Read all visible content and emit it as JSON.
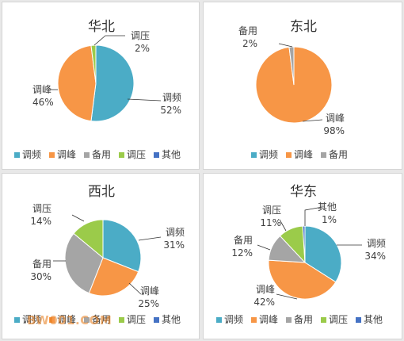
{
  "colors": {
    "调频": "#4bacc6",
    "调峰": "#f79646",
    "备用": "#a5a5a5",
    "调压": "#9bcb4a",
    "其他": "#4572c4"
  },
  "chart_data": [
    {
      "type": "pie",
      "title": "华北",
      "slices": [
        {
          "name": "调频",
          "value": 52,
          "label": "52%"
        },
        {
          "name": "调峰",
          "value": 46,
          "label": "46%"
        },
        {
          "name": "调压",
          "value": 2,
          "label": "2%"
        }
      ],
      "legend": [
        "调频",
        "调峰",
        "备用",
        "调压",
        "其他"
      ]
    },
    {
      "type": "pie",
      "title": "东北",
      "slices": [
        {
          "name": "调峰",
          "value": 98,
          "label": "98%"
        },
        {
          "name": "备用",
          "value": 2,
          "label": "2%"
        }
      ],
      "legend": [
        "调频",
        "调峰",
        "备用"
      ]
    },
    {
      "type": "pie",
      "title": "西北",
      "slices": [
        {
          "name": "调频",
          "value": 31,
          "label": "31%"
        },
        {
          "name": "调峰",
          "value": 25,
          "label": "25%"
        },
        {
          "name": "备用",
          "value": 30,
          "label": "30%"
        },
        {
          "name": "调压",
          "value": 14,
          "label": "14%"
        }
      ],
      "legend": [
        "调频",
        "调峰",
        "备用",
        "调压",
        "其他"
      ]
    },
    {
      "type": "pie",
      "title": "华东",
      "slices": [
        {
          "name": "调频",
          "value": 34,
          "label": "34%"
        },
        {
          "name": "调峰",
          "value": 42,
          "label": "42%"
        },
        {
          "name": "备用",
          "value": 12,
          "label": "12%"
        },
        {
          "name": "调压",
          "value": 11,
          "label": "11%"
        },
        {
          "name": "其他",
          "value": 1,
          "label": "1%"
        }
      ],
      "legend": [
        "调频",
        "调峰",
        "备用",
        "调压",
        "其他"
      ]
    }
  ],
  "watermark": "BW001.COM"
}
